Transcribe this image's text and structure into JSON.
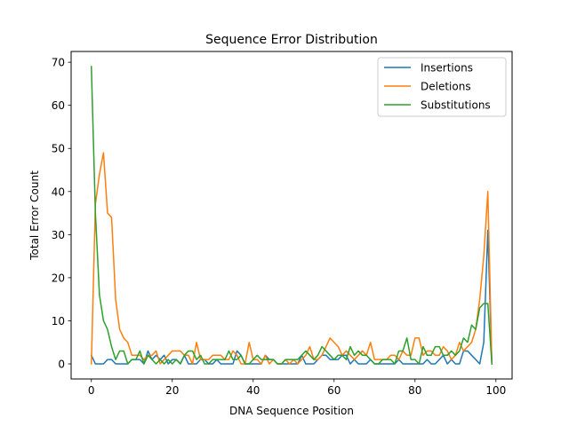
{
  "chart_data": {
    "type": "line",
    "title": "Sequence Error Distribution",
    "xlabel": "DNA Sequence Position",
    "ylabel": "Total Error Count",
    "xlim": [
      -5,
      104
    ],
    "ylim": [
      -3.5,
      72.5
    ],
    "xticks": [
      0,
      20,
      40,
      60,
      80,
      100
    ],
    "yticks": [
      0,
      10,
      20,
      30,
      40,
      50,
      60,
      70
    ],
    "grid": false,
    "legend_position": "top-right",
    "x_start": 0,
    "series": [
      {
        "name": "Insertions",
        "color": "#1f77b4",
        "values": [
          2,
          0,
          0,
          0,
          1,
          1,
          0,
          0,
          0,
          0,
          1,
          1,
          1,
          0,
          3,
          1,
          2,
          1,
          2,
          0,
          1,
          1,
          0,
          2,
          0,
          0,
          0,
          1,
          1,
          0,
          0,
          1,
          0,
          0,
          0,
          0,
          3,
          2,
          0,
          0,
          0,
          0,
          0,
          2,
          1,
          1,
          0,
          0,
          0,
          0,
          0,
          0,
          2,
          0,
          0,
          0,
          1,
          2,
          2,
          1,
          1,
          1,
          2,
          2,
          0,
          1,
          0,
          0,
          0,
          1,
          0,
          0,
          0,
          0,
          0,
          0,
          1,
          0,
          0,
          0,
          0,
          0,
          0,
          1,
          0,
          0,
          1,
          2,
          0,
          1,
          0,
          0,
          3,
          3,
          2,
          1,
          0,
          5,
          31,
          0
        ]
      },
      {
        "name": "Deletions",
        "color": "#ff7f0e",
        "values": [
          0,
          37,
          44,
          49,
          35,
          34,
          15,
          8,
          6,
          5,
          2,
          2,
          2,
          1,
          2,
          2,
          3,
          0,
          1,
          2,
          3,
          3,
          3,
          2,
          2,
          0,
          5,
          1,
          1,
          1,
          2,
          2,
          2,
          1,
          1,
          3,
          2,
          0,
          0,
          5,
          1,
          1,
          0,
          2,
          0,
          1,
          0,
          0,
          1,
          0,
          1,
          0,
          1,
          2,
          4,
          1,
          1,
          2,
          4,
          6,
          5,
          4,
          2,
          3,
          2,
          1,
          2,
          3,
          2,
          5,
          1,
          1,
          1,
          1,
          2,
          2,
          1,
          3,
          2,
          2,
          6,
          6,
          2,
          3,
          3,
          2,
          2,
          4,
          3,
          1,
          2,
          5,
          3,
          4,
          5,
          8,
          15,
          25,
          40,
          0
        ]
      },
      {
        "name": "Substitutions",
        "color": "#2ca02c",
        "values": [
          69,
          35,
          16,
          10,
          8,
          4,
          1,
          3,
          3,
          0,
          1,
          1,
          3,
          0,
          2,
          1,
          0,
          1,
          0,
          1,
          0,
          1,
          0,
          2,
          3,
          3,
          1,
          2,
          0,
          0,
          1,
          1,
          1,
          1,
          3,
          1,
          1,
          2,
          0,
          0,
          1,
          2,
          1,
          1,
          1,
          1,
          0,
          0,
          1,
          1,
          1,
          1,
          2,
          3,
          2,
          1,
          2,
          4,
          3,
          2,
          1,
          2,
          2,
          1,
          4,
          2,
          3,
          2,
          2,
          1,
          0,
          0,
          1,
          1,
          1,
          0,
          3,
          3,
          6,
          1,
          1,
          0,
          4,
          2,
          2,
          4,
          4,
          2,
          2,
          3,
          2,
          3,
          6,
          5,
          9,
          8,
          13,
          14,
          14,
          0
        ]
      }
    ]
  }
}
